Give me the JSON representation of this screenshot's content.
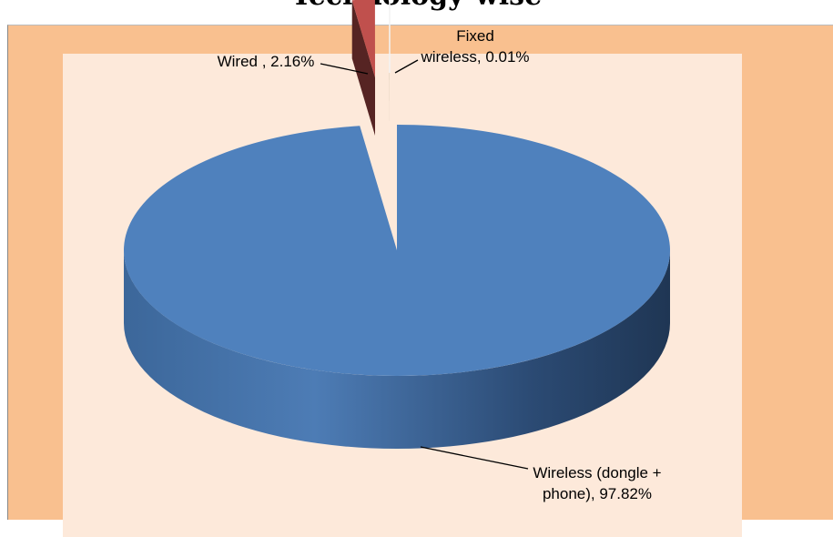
{
  "chart_data": {
    "type": "pie",
    "style": "3d-exploded",
    "title": "Technology-wise",
    "slices": [
      {
        "label": "Wireless (dongle + phone)",
        "value": 97.82,
        "display": "Wireless (dongle +\nphone), 97.82%",
        "color": "#4f81bd"
      },
      {
        "label": "Wired",
        "value": 2.16,
        "display": "Wired , 2.16%",
        "color": "#c0504d"
      },
      {
        "label": "Fixed wireless",
        "value": 0.01,
        "display": "Fixed\nwireless, 0.01%",
        "color": "#9bbb59"
      }
    ],
    "legend": "none",
    "colors": {
      "chart_background": "#f9c08f",
      "plot_background": "#fde9da"
    }
  }
}
